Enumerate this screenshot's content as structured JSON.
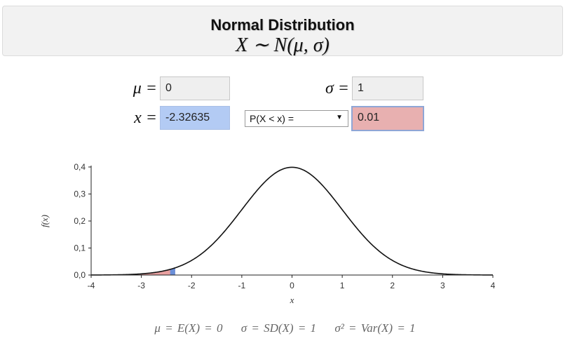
{
  "header": {
    "title": "Normal Distribution",
    "formula": "X ∼ N(μ, σ)"
  },
  "inputs": {
    "mu_label": "μ =",
    "mu_value": "0",
    "sigma_label": "σ =",
    "sigma_value": "1",
    "x_label": "x =",
    "x_value": "-2.32635",
    "p_value": "0.01"
  },
  "select": {
    "selected": "P(X < x) =",
    "arrow": "▼"
  },
  "colors": {
    "curve": "#111111",
    "shade_tail": "#e8a0a0",
    "shade_x": "#6a8fd8",
    "x_field": "#b3cbf4",
    "p_field": "#e8b0b0"
  },
  "chart_data": {
    "type": "line",
    "function": "normal_pdf",
    "mu": 0,
    "sigma": 1,
    "x_cutoff": -2.32635,
    "shaded_region": "x < -2.32635",
    "xlim": [
      -4,
      4
    ],
    "ylim": [
      0,
      0.4
    ],
    "xticks": [
      "-4",
      "-3",
      "-2",
      "-1",
      "0",
      "1",
      "2",
      "3",
      "4"
    ],
    "yticks": [
      "0,0",
      "0,1",
      "0,2",
      "0,3",
      "0,4"
    ],
    "xlabel": "x",
    "ylabel": "f(x)",
    "grid": false
  },
  "footer": {
    "mean": "μ = E(X) = 0",
    "sd": "σ = SD(X) = 1",
    "var": "σ² = Var(X) = 1"
  }
}
